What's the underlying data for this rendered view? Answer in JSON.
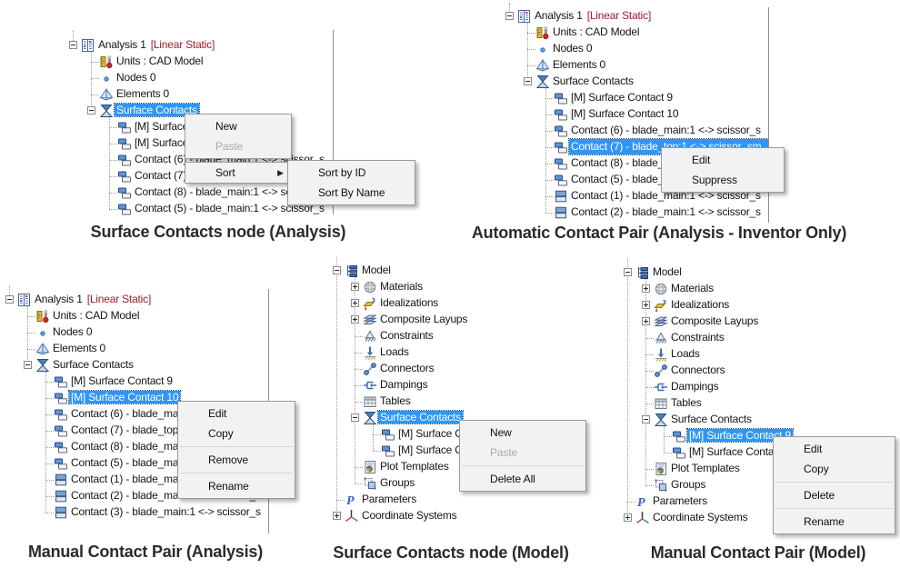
{
  "panels": [
    {
      "caption": "Surface Contacts node (Analysis)",
      "tree": [
        {
          "level": 0,
          "icon": "analysis-icon",
          "expand": "minus",
          "label": "Analysis 1",
          "suffix": "[Linear Static]"
        },
        {
          "level": 1,
          "icon": "units-icon",
          "label": "Units : CAD Model"
        },
        {
          "level": 1,
          "icon": "nodes-icon",
          "label": "Nodes 0"
        },
        {
          "level": 1,
          "icon": "elements-icon",
          "label": "Elements 0"
        },
        {
          "level": 1,
          "icon": "surface-contacts-icon",
          "expand": "minus",
          "label": "Surface Contacts",
          "selected": true
        },
        {
          "level": 2,
          "icon": "contact-pair-icon",
          "label": "[M] Surface Contact 9"
        },
        {
          "level": 2,
          "icon": "contact-pair-icon",
          "label": "[M] Surface Contact 10"
        },
        {
          "level": 2,
          "icon": "contact-pair-icon",
          "label": "Contact (6) - blade_main:1 <-> scissor_s"
        },
        {
          "level": 2,
          "icon": "contact-pair-icon",
          "label": "Contact (7) - blade_top:1 <-> scissor_sm"
        },
        {
          "level": 2,
          "icon": "contact-pair-icon",
          "label": "Contact (8) - blade_main:1 <-> scissor_s"
        },
        {
          "level": 2,
          "icon": "contact-pair-icon",
          "label": "Contact (5) - blade_main:1 <-> scissor_s"
        }
      ],
      "menus": [
        {
          "id": "surface-contacts-context-menu",
          "items": [
            {
              "label": "New"
            },
            {
              "label": "Paste",
              "disabled": true
            }
          ]
        },
        {
          "id": "sort-menu-row",
          "items": [
            {
              "label": "Sort",
              "submenu": true
            }
          ]
        },
        {
          "id": "sort-submenu",
          "items": [
            {
              "label": "Sort by ID"
            },
            {
              "label": "Sort By Name"
            }
          ]
        }
      ]
    },
    {
      "caption": "Automatic Contact Pair (Analysis - Inventor Only)",
      "tree": [
        {
          "level": 0,
          "icon": "analysis-icon",
          "expand": "minus",
          "label": "Analysis 1",
          "suffix": "[Linear Static]"
        },
        {
          "level": 1,
          "icon": "units-icon",
          "label": "Units : CAD Model"
        },
        {
          "level": 1,
          "icon": "nodes-icon",
          "label": "Nodes 0"
        },
        {
          "level": 1,
          "icon": "elements-icon",
          "label": "Elements 0"
        },
        {
          "level": 1,
          "icon": "surface-contacts-icon",
          "expand": "minus",
          "label": "Surface Contacts"
        },
        {
          "level": 2,
          "icon": "contact-pair-icon",
          "label": "[M] Surface Contact 9"
        },
        {
          "level": 2,
          "icon": "contact-pair-icon",
          "label": "[M] Surface Contact 10"
        },
        {
          "level": 2,
          "icon": "contact-pair-icon",
          "label": "Contact (6) - blade_main:1 <-> scissor_s"
        },
        {
          "level": 2,
          "icon": "contact-pair-icon",
          "label": "Contact (7) - blade_top:1 <-> scissor_sm",
          "selected": true
        },
        {
          "level": 2,
          "icon": "contact-pair-icon",
          "label": "Contact (8) - blade_main:1 <-> scissor_s"
        },
        {
          "level": 2,
          "icon": "contact-pair-icon",
          "label": "Contact (5) - blade_main:1 <-> scissor_s"
        },
        {
          "level": 2,
          "icon": "contact-auto-icon",
          "label": "Contact (1) - blade_main:1 <-> scissor_s"
        },
        {
          "level": 2,
          "icon": "contact-auto-icon",
          "label": "Contact (2) - blade_main:1 <-> scissor_s"
        }
      ],
      "menus": [
        {
          "id": "contact-context-menu",
          "items": [
            {
              "label": "Edit"
            },
            {
              "label": "Suppress"
            }
          ]
        }
      ]
    },
    {
      "caption": "Manual Contact Pair (Analysis)",
      "tree": [
        {
          "level": 0,
          "icon": "analysis-icon",
          "expand": "minus",
          "label": "Analysis 1",
          "suffix": "[Linear Static]"
        },
        {
          "level": 1,
          "icon": "units-icon",
          "label": "Units : CAD Model"
        },
        {
          "level": 1,
          "icon": "nodes-icon",
          "label": "Nodes 0"
        },
        {
          "level": 1,
          "icon": "elements-icon",
          "label": "Elements 0"
        },
        {
          "level": 1,
          "icon": "surface-contacts-icon",
          "expand": "minus",
          "label": "Surface Contacts"
        },
        {
          "level": 2,
          "icon": "contact-pair-icon",
          "label": "[M] Surface Contact 9"
        },
        {
          "level": 2,
          "icon": "contact-pair-icon",
          "label": "[M] Surface Contact 10",
          "selected": true
        },
        {
          "level": 2,
          "icon": "contact-pair-icon",
          "label": "Contact (6) - blade_main:1 <-> scissor_s"
        },
        {
          "level": 2,
          "icon": "contact-pair-icon",
          "label": "Contact (7) - blade_top:1 <-> scissor_sm"
        },
        {
          "level": 2,
          "icon": "contact-pair-icon",
          "label": "Contact (8) - blade_main:1 <-> scissor_s"
        },
        {
          "level": 2,
          "icon": "contact-pair-icon",
          "label": "Contact (5) - blade_main:1 <-> scissor_s"
        },
        {
          "level": 2,
          "icon": "contact-auto-icon",
          "label": "Contact (1) - blade_main:1 <-> scissor_s"
        },
        {
          "level": 2,
          "icon": "contact-auto-icon",
          "label": "Contact (2) - blade_main:1 <-> scissor_s"
        },
        {
          "level": 2,
          "icon": "contact-auto-icon",
          "label": "Contact (3) - blade_main:1 <-> scissor_s"
        }
      ],
      "menus": [
        {
          "id": "contact-context-menu",
          "items": [
            {
              "label": "Edit"
            },
            {
              "label": "Copy"
            },
            {
              "type": "separator"
            },
            {
              "label": "Remove"
            },
            {
              "type": "separator"
            },
            {
              "label": "Rename"
            }
          ]
        }
      ]
    },
    {
      "caption": "Surface Contacts node (Model)",
      "tree": [
        {
          "level": 0,
          "icon": "model-icon",
          "expand": "minus",
          "label": "Model"
        },
        {
          "level": 1,
          "icon": "materials-icon",
          "expand": "plus",
          "label": "Materials"
        },
        {
          "level": 1,
          "icon": "idealizations-icon",
          "expand": "plus",
          "label": "Idealizations"
        },
        {
          "level": 1,
          "icon": "composite-layups-icon",
          "expand": "plus",
          "label": "Composite Layups"
        },
        {
          "level": 1,
          "icon": "constraints-icon",
          "label": "Constraints"
        },
        {
          "level": 1,
          "icon": "loads-icon",
          "label": "Loads"
        },
        {
          "level": 1,
          "icon": "connectors-icon",
          "label": "Connectors"
        },
        {
          "level": 1,
          "icon": "dampings-icon",
          "label": "Dampings"
        },
        {
          "level": 1,
          "icon": "tables-icon",
          "label": "Tables"
        },
        {
          "level": 1,
          "icon": "surface-contacts-icon",
          "expand": "minus",
          "label": "Surface Contacts",
          "selected": true
        },
        {
          "level": 2,
          "icon": "contact-pair-icon",
          "label": "[M] Surface Contact 9"
        },
        {
          "level": 2,
          "icon": "contact-pair-icon",
          "label": "[M] Surface Contact 10"
        },
        {
          "level": 1,
          "icon": "plot-templates-icon",
          "label": "Plot Templates"
        },
        {
          "level": 1,
          "icon": "groups-icon",
          "label": "Groups"
        },
        {
          "level": 0,
          "icon": "parameters-icon",
          "label": "Parameters"
        },
        {
          "level": 0,
          "icon": "coordinate-systems-icon",
          "expand": "plus",
          "label": "Coordinate Systems"
        }
      ],
      "menus": [
        {
          "id": "surface-contacts-context-menu",
          "items": [
            {
              "label": "New"
            },
            {
              "label": "Paste",
              "disabled": true
            },
            {
              "type": "separator"
            },
            {
              "label": "Delete All"
            }
          ]
        }
      ]
    },
    {
      "caption": "Manual Contact Pair (Model)",
      "tree": [
        {
          "level": 0,
          "icon": "model-icon",
          "expand": "minus",
          "label": "Model"
        },
        {
          "level": 1,
          "icon": "materials-icon",
          "expand": "plus",
          "label": "Materials"
        },
        {
          "level": 1,
          "icon": "idealizations-icon",
          "expand": "plus",
          "label": "Idealizations"
        },
        {
          "level": 1,
          "icon": "composite-layups-icon",
          "expand": "plus",
          "label": "Composite Layups"
        },
        {
          "level": 1,
          "icon": "constraints-icon",
          "label": "Constraints"
        },
        {
          "level": 1,
          "icon": "loads-icon",
          "label": "Loads"
        },
        {
          "level": 1,
          "icon": "connectors-icon",
          "label": "Connectors"
        },
        {
          "level": 1,
          "icon": "dampings-icon",
          "label": "Dampings"
        },
        {
          "level": 1,
          "icon": "tables-icon",
          "label": "Tables"
        },
        {
          "level": 1,
          "icon": "surface-contacts-icon",
          "expand": "minus",
          "label": "Surface Contacts"
        },
        {
          "level": 2,
          "icon": "contact-pair-icon",
          "label": "[M] Surface Contact 9",
          "selected": true
        },
        {
          "level": 2,
          "icon": "contact-pair-icon",
          "label": "[M] Surface Contact 10"
        },
        {
          "level": 1,
          "icon": "plot-templates-icon",
          "label": "Plot Templates"
        },
        {
          "level": 1,
          "icon": "groups-icon",
          "label": "Groups"
        },
        {
          "level": 0,
          "icon": "parameters-icon",
          "label": "Parameters"
        },
        {
          "level": 0,
          "icon": "coordinate-systems-icon",
          "expand": "plus",
          "label": "Coordinate Systems"
        }
      ],
      "menus": [
        {
          "id": "contact-context-menu",
          "items": [
            {
              "label": "Edit"
            },
            {
              "label": "Copy"
            },
            {
              "type": "separator"
            },
            {
              "label": "Delete"
            },
            {
              "type": "separator"
            },
            {
              "label": "Rename"
            }
          ]
        }
      ]
    }
  ]
}
